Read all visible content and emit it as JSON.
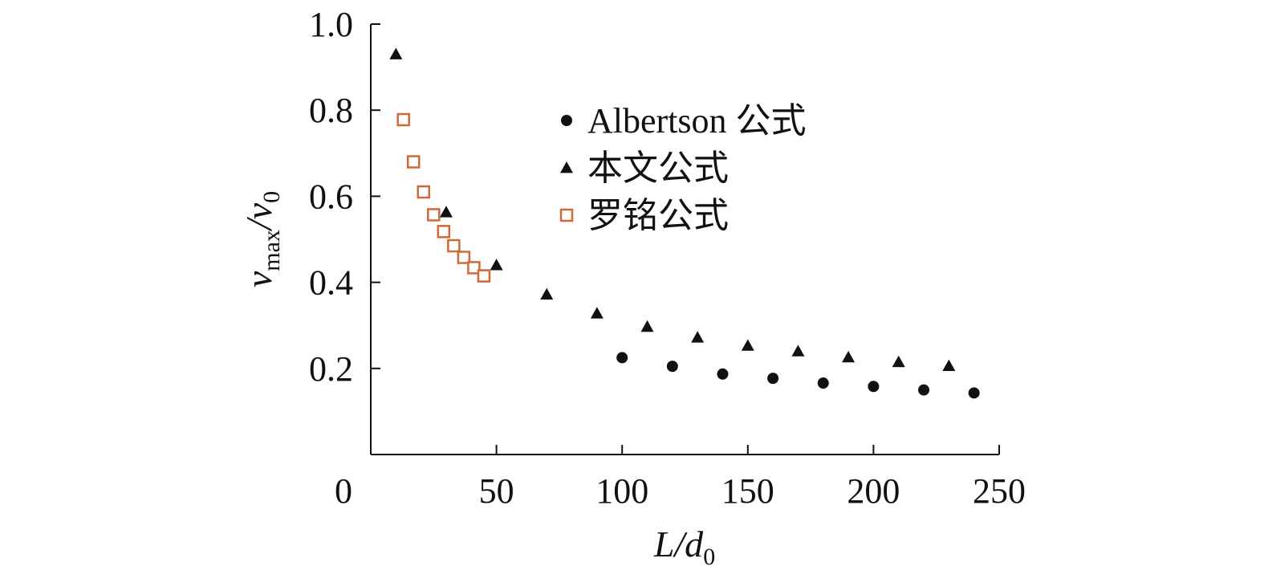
{
  "chart_data": {
    "type": "scatter",
    "xlabel": "L/d0",
    "ylabel": "vmax/v0",
    "xlim": [
      0,
      250
    ],
    "ylim": [
      0,
      1.0
    ],
    "x_ticks": [
      "0",
      "50",
      "100",
      "150",
      "200",
      "250"
    ],
    "y_ticks": [
      "0.2",
      "0.4",
      "0.6",
      "0.8",
      "1.0"
    ],
    "legend_position": "top-right",
    "series": [
      {
        "name": "Albertson 公式",
        "marker": "circle",
        "color": "#111111",
        "points": [
          [
            100,
            0.225
          ],
          [
            120,
            0.205
          ],
          [
            140,
            0.187
          ],
          [
            160,
            0.177
          ],
          [
            180,
            0.166
          ],
          [
            200,
            0.158
          ],
          [
            220,
            0.15
          ],
          [
            240,
            0.143
          ]
        ]
      },
      {
        "name": "本文公式",
        "marker": "triangle",
        "color": "#111111",
        "points": [
          [
            10,
            0.93
          ],
          [
            30,
            0.563
          ],
          [
            50,
            0.44
          ],
          [
            70,
            0.372
          ],
          [
            90,
            0.328
          ],
          [
            110,
            0.297
          ],
          [
            130,
            0.272
          ],
          [
            150,
            0.253
          ],
          [
            170,
            0.24
          ],
          [
            190,
            0.226
          ],
          [
            210,
            0.215
          ],
          [
            230,
            0.206
          ]
        ]
      },
      {
        "name": "罗铭公式",
        "marker": "square-open",
        "color": "#d0683a",
        "points": [
          [
            13,
            0.778
          ],
          [
            17,
            0.68
          ],
          [
            21,
            0.61
          ],
          [
            25,
            0.557
          ],
          [
            29,
            0.518
          ],
          [
            33,
            0.485
          ],
          [
            37,
            0.458
          ],
          [
            41,
            0.434
          ],
          [
            45,
            0.415
          ]
        ]
      }
    ]
  }
}
